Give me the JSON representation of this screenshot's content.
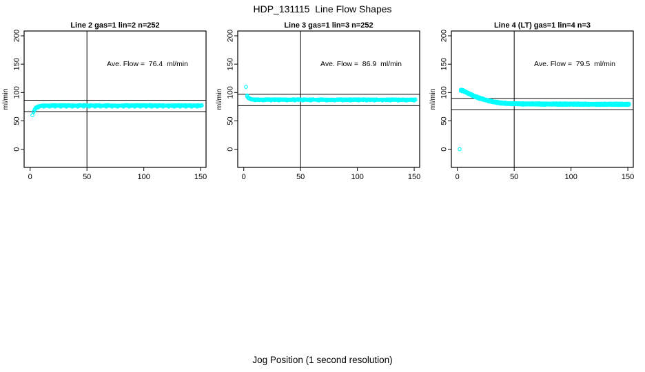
{
  "title": "HDP_131115  Line Flow Shapes",
  "xlabel": "Jog Position (1 second resolution)",
  "colors": {
    "points": "#00FFFF",
    "axis": "#000000",
    "text": "#000000",
    "background": "#FFFFFF"
  },
  "axes": {
    "ylabel": "ml/min",
    "x_ticks": [
      0,
      50,
      100,
      150
    ],
    "y_ticks": [
      0,
      50,
      100,
      150,
      200
    ],
    "xlim": [
      -5.3,
      154.8
    ],
    "ylim": [
      -32,
      208.5
    ],
    "vline_x": 50
  },
  "chart_data": [
    {
      "type": "scatter",
      "title": "Line 2 gas=1 lin=2 n=252",
      "annotation": "Ave. Flow =  76.4  ml/min",
      "ave_flow_ml_min": 76.4,
      "marker": "open-circle",
      "hlines": [
        66.4,
        86.4
      ],
      "outlier_points": [
        [
          2,
          60
        ]
      ],
      "curve_keypoints": [
        [
          3,
          66
        ],
        [
          4,
          70
        ],
        [
          5,
          72.5
        ],
        [
          6,
          74.5
        ],
        [
          7,
          75.5
        ],
        [
          9,
          76.5
        ],
        [
          12,
          77
        ],
        [
          60,
          77
        ],
        [
          151,
          77
        ]
      ],
      "x_range": [
        3,
        151
      ]
    },
    {
      "type": "scatter",
      "title": "Line 3 gas=1 lin=3 n=252",
      "annotation": "Ave. Flow =  86.9  ml/min",
      "ave_flow_ml_min": 86.9,
      "marker": "open-circle",
      "hlines": [
        76.9,
        96.9
      ],
      "outlier_points": [
        [
          2,
          110
        ]
      ],
      "curve_keypoints": [
        [
          3,
          94.5
        ],
        [
          4,
          91
        ],
        [
          5,
          89.5
        ],
        [
          6,
          88.5
        ],
        [
          8,
          88
        ],
        [
          12,
          87.5
        ],
        [
          60,
          87.4
        ],
        [
          151,
          87.3
        ]
      ],
      "x_range": [
        3,
        151
      ]
    },
    {
      "type": "scatter",
      "title": "Line 4 (LT) gas=1 lin=4 n=3",
      "annotation": "Ave. Flow =  79.5  ml/min",
      "ave_flow_ml_min": 79.5,
      "marker": "open-circle",
      "hlines": [
        69.5,
        89.5
      ],
      "outlier_points": [
        [
          2,
          0
        ]
      ],
      "curve_keypoints": [
        [
          3,
          104
        ],
        [
          5,
          103
        ],
        [
          7,
          101.5
        ],
        [
          9,
          99.5
        ],
        [
          12,
          96.5
        ],
        [
          15,
          93.5
        ],
        [
          18,
          91
        ],
        [
          22,
          88.5
        ],
        [
          26,
          86.5
        ],
        [
          30,
          84.5
        ],
        [
          35,
          82.5
        ],
        [
          40,
          81.3
        ],
        [
          45,
          80.5
        ],
        [
          50,
          80.2
        ],
        [
          60,
          79.8
        ],
        [
          90,
          79.6
        ],
        [
          151,
          79.3
        ]
      ],
      "x_range": [
        3,
        151
      ]
    }
  ]
}
